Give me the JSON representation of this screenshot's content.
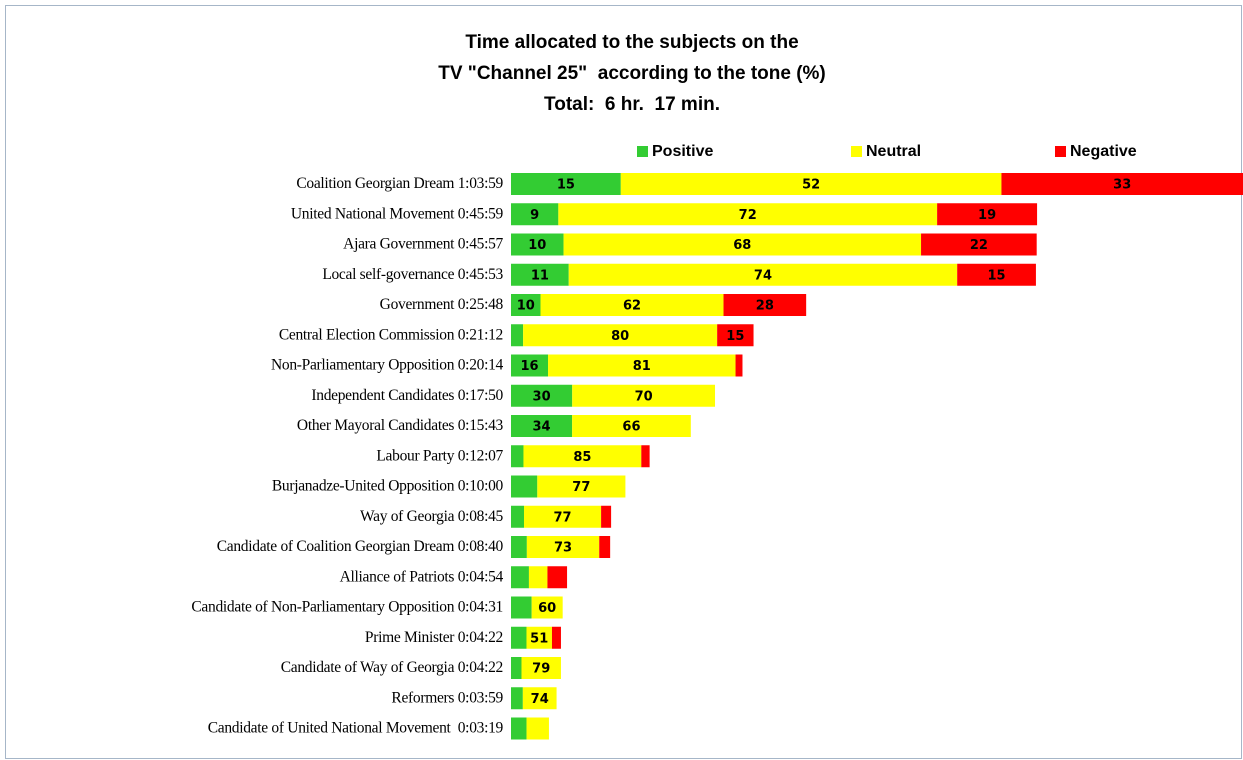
{
  "chart_data": {
    "type": "bar",
    "orientation": "horizontal",
    "stacked": true,
    "title": [
      "Time allocated to the subjects on the",
      "TV \"Channel 25\"  according to the tone (%)"
    ],
    "subtitle": "Total:  6 hr.  17 min.",
    "categories": [
      "Coalition Georgian Dream",
      "United National Movement",
      "Ajara Government",
      "Local self-governance",
      "Government",
      "Central Election Commission",
      "Non-Parliamentary Opposition",
      "Independent Candidates",
      "Other Mayoral Candidates",
      "Labour Party",
      "Burjanadze-United Opposition",
      "Way of Georgia",
      "Candidate of Coalition Georgian Dream",
      "Alliance of Patriots",
      "Candidate of Non-Parliamentary Opposition",
      "Prime Minister",
      "Candidate of Way of Georgia",
      "Reformers",
      "Candidate of United National Movement "
    ],
    "durations": [
      {
        "value": 3839,
        "label": "1:03:59"
      },
      {
        "value": 2759,
        "label": "0:45:59"
      },
      {
        "value": 2757,
        "label": "0:45:57"
      },
      {
        "value": 2753,
        "label": "0:45:53"
      },
      {
        "value": 1548,
        "label": "0:25:48"
      },
      {
        "value": 1272,
        "label": "0:21:12"
      },
      {
        "value": 1214,
        "label": "0:20:14"
      },
      {
        "value": 1070,
        "label": "0:17:50"
      },
      {
        "value": 943,
        "label": "0:15:43"
      },
      {
        "value": 727,
        "label": "0:12:07"
      },
      {
        "value": 600,
        "label": "0:10:00"
      },
      {
        "value": 525,
        "label": "0:08:45"
      },
      {
        "value": 520,
        "label": "0:08:40"
      },
      {
        "value": 294,
        "label": "0:04:54"
      },
      {
        "value": 271,
        "label": "0:04:31"
      },
      {
        "value": 262,
        "label": "0:04:22"
      },
      {
        "value": 262,
        "label": "0:04:22"
      },
      {
        "value": 239,
        "label": "0:03:59"
      },
      {
        "value": 199,
        "label": "0:03:19"
      }
    ],
    "series": [
      {
        "name": "Positive",
        "color": "#33cc33",
        "values": [
          15,
          9,
          10,
          11,
          10,
          5,
          16,
          30,
          34,
          9,
          23,
          13,
          16,
          32,
          40,
          31,
          21,
          26,
          41
        ],
        "value_labels": [
          "15",
          "9",
          "10",
          "11",
          "10",
          null,
          "16",
          "30",
          "34",
          null,
          null,
          null,
          null,
          null,
          null,
          null,
          null,
          null,
          null
        ]
      },
      {
        "name": "Neutral",
        "color": "#ffff00",
        "values": [
          52,
          72,
          68,
          74,
          62,
          80,
          81,
          70,
          66,
          85,
          77,
          77,
          73,
          33,
          60,
          51,
          79,
          74,
          59
        ],
        "value_labels": [
          "52",
          "72",
          "68",
          "74",
          "62",
          "80",
          "81",
          "70",
          "66",
          "85",
          "77",
          "77",
          "73",
          null,
          "60",
          "51",
          "79",
          "74",
          null
        ]
      },
      {
        "name": "Negative",
        "color": "#ff0000",
        "values": [
          33,
          19,
          22,
          15,
          28,
          15,
          3,
          0,
          0,
          6,
          0,
          10,
          11,
          35,
          0,
          18,
          0,
          0,
          0
        ],
        "value_labels": [
          "33",
          "19",
          "22",
          "15",
          "28",
          "15",
          null,
          null,
          null,
          null,
          null,
          null,
          null,
          null,
          null,
          null,
          null,
          null,
          null
        ]
      }
    ],
    "legend": "top"
  }
}
